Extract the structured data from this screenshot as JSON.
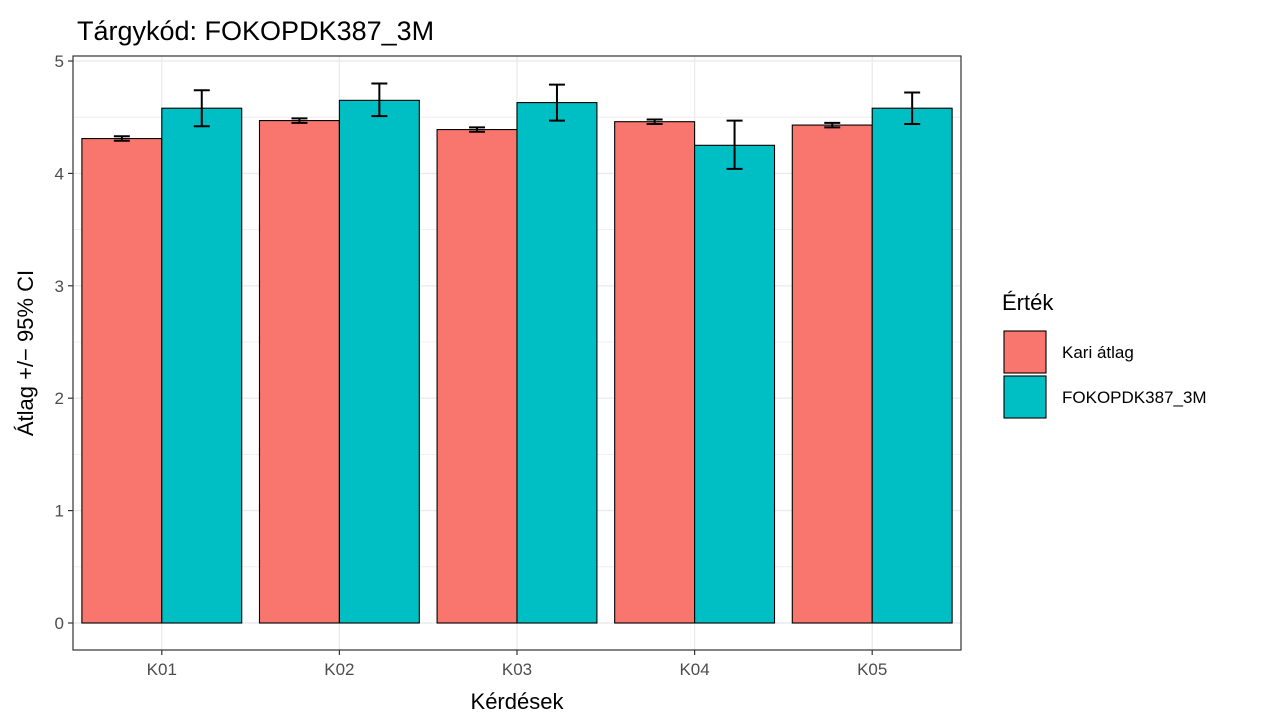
{
  "chart_data": {
    "type": "bar",
    "title": "Tárgykód:  FOKOPDK387_3M",
    "xlabel": "Kérdések",
    "ylabel": "Átlag +/− 95% CI",
    "categories": [
      "K01",
      "K02",
      "K03",
      "K04",
      "K05"
    ],
    "ylim": [
      0,
      5
    ],
    "yticks": [
      "0",
      "1",
      "2",
      "3",
      "4",
      "5"
    ],
    "grid": true,
    "legend": {
      "title": "Érték",
      "position": "right"
    },
    "series": [
      {
        "name": "Kari átlag",
        "color": "#F8766D",
        "values": [
          4.31,
          4.47,
          4.39,
          4.46,
          4.43
        ],
        "ci_low": [
          4.29,
          4.45,
          4.37,
          4.44,
          4.41
        ],
        "ci_high": [
          4.33,
          4.49,
          4.41,
          4.48,
          4.45
        ]
      },
      {
        "name": "FOKOPDK387_3M",
        "color": "#00BFC4",
        "values": [
          4.58,
          4.65,
          4.63,
          4.25,
          4.58
        ],
        "ci_low": [
          4.42,
          4.51,
          4.47,
          4.04,
          4.44
        ],
        "ci_high": [
          4.74,
          4.8,
          4.79,
          4.47,
          4.72
        ]
      }
    ]
  }
}
